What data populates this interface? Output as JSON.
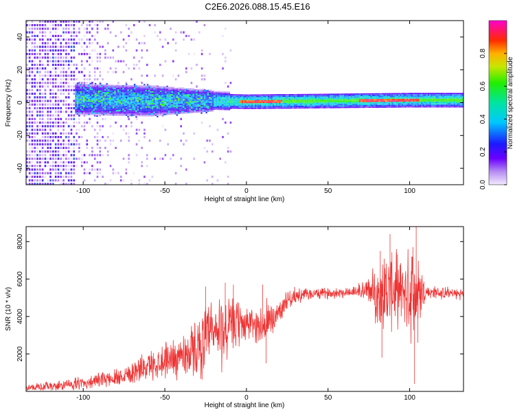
{
  "figure_title": "C2E6.2026.088.15.45.E16",
  "chart_data": [
    {
      "type": "heatmap",
      "title": "C2E6.2026.088.15.45.E16",
      "xlabel": "Height of straight line (km)",
      "ylabel": "Frequency (Hz)",
      "xlim": [
        -135,
        133
      ],
      "ylim": [
        -50,
        50
      ],
      "x_ticks": [
        -100,
        -50,
        0,
        50,
        100
      ],
      "x_tick_labels": [
        "-100",
        "-50",
        "0",
        "50",
        "100"
      ],
      "y_ticks": [
        -40,
        -20,
        0,
        20,
        40
      ],
      "y_tick_labels": [
        "-40",
        "-20",
        "0",
        "20",
        "40"
      ],
      "colorbar": {
        "label": "Normalized spectral amplitude",
        "range": [
          0,
          1
        ],
        "ticks": [
          0,
          0.2,
          0.4,
          0.6,
          0.8
        ],
        "tick_labels": [
          "0.0",
          "0.2",
          "0.4",
          "0.6",
          "0.8"
        ],
        "colormap": "rainbow (white-violet-blue-cyan-green-yellow-red-magenta)"
      },
      "description_of_content": "Broad scattered low-amplitude energy across all frequencies for heights below about -90 km; energy concentrates near 0 Hz from about -105 km to -15 km (band width roughly +/-8 Hz); narrow high-amplitude band near +2 Hz from about -20 km to 133 km, peaking (red) near 0-20 km and 70-105 km.",
      "band_center_hz": [
        {
          "x": -105,
          "f": 2
        },
        {
          "x": -60,
          "f": 1
        },
        {
          "x": -20,
          "f": 1
        },
        {
          "x": 0,
          "f": 0.5
        },
        {
          "x": 50,
          "f": 1
        },
        {
          "x": 100,
          "f": 1.5
        },
        {
          "x": 133,
          "f": 1.5
        }
      ]
    },
    {
      "type": "line",
      "title": "",
      "xlabel": "Height of straight line (km)",
      "ylabel": "SNR (10 * v/v)",
      "xlim": [
        -135,
        133
      ],
      "ylim": [
        0,
        8800
      ],
      "x_ticks": [
        -100,
        -50,
        0,
        50,
        100
      ],
      "x_tick_labels": [
        "-100",
        "-50",
        "0",
        "50",
        "100"
      ],
      "y_ticks": [
        2000,
        4000,
        6000,
        8000
      ],
      "y_tick_labels": [
        "2000",
        "4000",
        "6000",
        "8000"
      ],
      "series": [
        {
          "name": "SNR",
          "color": "#ee3333",
          "x": [
            -135,
            -120,
            -100,
            -80,
            -70,
            -60,
            -50,
            -40,
            -30,
            -25,
            -20,
            -15,
            -10,
            -5,
            0,
            5,
            10,
            15,
            20,
            25,
            30,
            40,
            50,
            60,
            70,
            75,
            80,
            85,
            90,
            95,
            100,
            105,
            110,
            120,
            133
          ],
          "y": [
            200,
            250,
            450,
            750,
            1050,
            1350,
            1700,
            1900,
            2300,
            2800,
            3000,
            3200,
            3400,
            3600,
            3650,
            3550,
            3500,
            3700,
            4300,
            4900,
            5100,
            5200,
            5250,
            5300,
            5350,
            5400,
            5200,
            5300,
            5400,
            5350,
            5300,
            5300,
            5300,
            5250,
            5200
          ],
          "noise_envelope": [
            {
              "x": -135,
              "amp": 250
            },
            {
              "x": -90,
              "amp": 450
            },
            {
              "x": -60,
              "amp": 900
            },
            {
              "x": -40,
              "amp": 1400
            },
            {
              "x": -25,
              "amp": 2200
            },
            {
              "x": -15,
              "amp": 2600
            },
            {
              "x": -5,
              "amp": 1500
            },
            {
              "x": 5,
              "amp": 1000
            },
            {
              "x": 12,
              "amp": 1800
            },
            {
              "x": 20,
              "amp": 700
            },
            {
              "x": 40,
              "amp": 350
            },
            {
              "x": 65,
              "amp": 350
            },
            {
              "x": 75,
              "amp": 900
            },
            {
              "x": 85,
              "amp": 2800
            },
            {
              "x": 95,
              "amp": 2000
            },
            {
              "x": 104,
              "amp": 3500
            },
            {
              "x": 110,
              "amp": 450
            },
            {
              "x": 133,
              "amp": 350
            }
          ],
          "spikes": [
            {
              "x": -13,
              "y": 5800
            },
            {
              "x": -25,
              "y": 5600
            },
            {
              "x": -8,
              "y": 5700
            },
            {
              "x": 10,
              "y": 5700
            },
            {
              "x": 12,
              "y": 1500
            },
            {
              "x": 82,
              "y": 7500
            },
            {
              "x": 83,
              "y": 1800
            },
            {
              "x": 88,
              "y": 8400
            },
            {
              "x": 92,
              "y": 7600
            },
            {
              "x": 102,
              "y": 7700
            },
            {
              "x": 104,
              "y": 8800
            },
            {
              "x": 103,
              "y": 400
            },
            {
              "x": 105,
              "y": 2600
            }
          ]
        }
      ]
    }
  ]
}
